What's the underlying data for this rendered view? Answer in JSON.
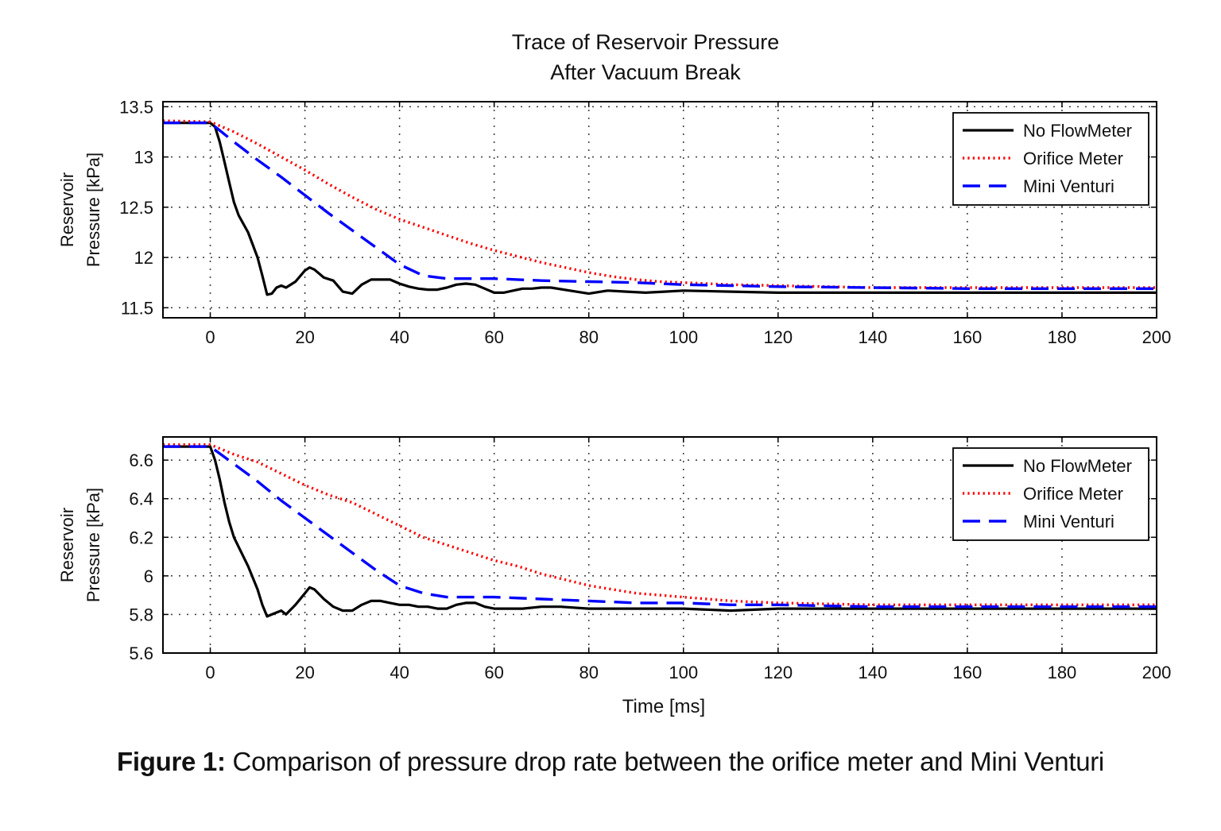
{
  "title_lines": [
    "Trace of Reservoir Pressure",
    "After Vacuum Break"
  ],
  "caption": {
    "label": "Figure 1:",
    "text": " Comparison of pressure drop rate between the orifice meter and Mini Venturi"
  },
  "colors": {
    "no_flow": "#000000",
    "orifice": "#ff0000",
    "venturi": "#0000ff",
    "grid": "#444444"
  },
  "chart_data": [
    {
      "type": "line",
      "title": "Trace of Reservoir Pressure After Vacuum Break",
      "xlabel": "",
      "ylabel_lines": [
        "Reservoir",
        "Pressure [kPa]"
      ],
      "xlim": [
        -10,
        200
      ],
      "ylim": [
        11.4,
        13.55
      ],
      "xticks": [
        0,
        20,
        40,
        60,
        80,
        100,
        120,
        140,
        160,
        180,
        200
      ],
      "yticks": [
        11.5,
        12,
        12.5,
        13,
        13.5
      ],
      "ytick_labels": [
        "11.5",
        "12",
        "12.5",
        "13",
        "13.5"
      ],
      "grid": true,
      "legend": "top-right",
      "series": [
        {
          "name": "No FlowMeter",
          "style": "solid",
          "x": [
            -10,
            0,
            1,
            2,
            3,
            4,
            5,
            6,
            8,
            10,
            11,
            12,
            13,
            14,
            15,
            16,
            18,
            20,
            21,
            22,
            24,
            26,
            28,
            30,
            32,
            34,
            36,
            38,
            40,
            42,
            44,
            46,
            48,
            50,
            52,
            54,
            56,
            58,
            60,
            62,
            64,
            66,
            68,
            70,
            72,
            76,
            80,
            84,
            88,
            92,
            96,
            100,
            110,
            120,
            140,
            160,
            180,
            200
          ],
          "y": [
            13.34,
            13.34,
            13.3,
            13.15,
            12.95,
            12.75,
            12.55,
            12.42,
            12.25,
            12.0,
            11.82,
            11.63,
            11.64,
            11.7,
            11.72,
            11.7,
            11.76,
            11.87,
            11.9,
            11.88,
            11.8,
            11.77,
            11.66,
            11.64,
            11.73,
            11.78,
            11.78,
            11.78,
            11.74,
            11.71,
            11.69,
            11.68,
            11.68,
            11.7,
            11.73,
            11.74,
            11.73,
            11.69,
            11.65,
            11.65,
            11.67,
            11.69,
            11.69,
            11.7,
            11.7,
            11.67,
            11.64,
            11.67,
            11.66,
            11.65,
            11.66,
            11.67,
            11.66,
            11.65,
            11.65,
            11.65,
            11.65,
            11.65
          ]
        },
        {
          "name": "Orifice Meter",
          "style": "dotted",
          "x": [
            -10,
            0,
            5,
            10,
            15,
            20,
            25,
            30,
            35,
            40,
            45,
            50,
            55,
            60,
            65,
            70,
            75,
            80,
            85,
            90,
            95,
            100,
            110,
            120,
            130,
            140,
            160,
            180,
            200
          ],
          "y": [
            13.36,
            13.35,
            13.25,
            13.13,
            13.0,
            12.87,
            12.73,
            12.6,
            12.48,
            12.38,
            12.3,
            12.22,
            12.14,
            12.07,
            12.01,
            11.95,
            11.9,
            11.85,
            11.81,
            11.78,
            11.76,
            11.75,
            11.73,
            11.72,
            11.71,
            11.7,
            11.7,
            11.7,
            11.7
          ]
        },
        {
          "name": "Mini Venturi",
          "style": "dashed",
          "x": [
            -10,
            0,
            5,
            10,
            15,
            20,
            25,
            30,
            35,
            40,
            45,
            50,
            55,
            60,
            70,
            80,
            90,
            100,
            110,
            120,
            140,
            160,
            180,
            200
          ],
          "y": [
            13.34,
            13.34,
            13.15,
            12.97,
            12.8,
            12.62,
            12.44,
            12.27,
            12.1,
            11.93,
            11.82,
            11.79,
            11.79,
            11.79,
            11.77,
            11.76,
            11.75,
            11.73,
            11.72,
            11.71,
            11.7,
            11.69,
            11.69,
            11.69
          ]
        }
      ]
    },
    {
      "type": "line",
      "title": "",
      "xlabel": "Time [ms]",
      "ylabel_lines": [
        "Reservoir",
        "Pressure [kPa]"
      ],
      "xlim": [
        -10,
        200
      ],
      "ylim": [
        5.6,
        6.72
      ],
      "xticks": [
        0,
        20,
        40,
        60,
        80,
        100,
        120,
        140,
        160,
        180,
        200
      ],
      "yticks": [
        5.6,
        5.8,
        6,
        6.2,
        6.4,
        6.6
      ],
      "ytick_labels": [
        "5.6",
        "5.8",
        "6",
        "6.2",
        "6.4",
        "6.6"
      ],
      "grid": true,
      "legend": "top-right",
      "series": [
        {
          "name": "No FlowMeter",
          "style": "solid",
          "x": [
            -10,
            0,
            1,
            2,
            3,
            4,
            5,
            6,
            8,
            10,
            11,
            12,
            13,
            14,
            15,
            16,
            18,
            20,
            21,
            22,
            24,
            26,
            28,
            30,
            32,
            34,
            36,
            38,
            40,
            42,
            44,
            46,
            48,
            50,
            52,
            54,
            56,
            58,
            60,
            62,
            66,
            70,
            74,
            80,
            90,
            100,
            110,
            120,
            140,
            160,
            180,
            200
          ],
          "y": [
            6.67,
            6.67,
            6.6,
            6.5,
            6.38,
            6.28,
            6.2,
            6.15,
            6.05,
            5.93,
            5.85,
            5.79,
            5.8,
            5.81,
            5.82,
            5.8,
            5.85,
            5.91,
            5.94,
            5.93,
            5.88,
            5.84,
            5.82,
            5.82,
            5.85,
            5.87,
            5.87,
            5.86,
            5.85,
            5.85,
            5.84,
            5.84,
            5.83,
            5.83,
            5.85,
            5.86,
            5.86,
            5.84,
            5.83,
            5.83,
            5.83,
            5.84,
            5.84,
            5.83,
            5.83,
            5.83,
            5.82,
            5.83,
            5.83,
            5.83,
            5.83,
            5.83
          ]
        },
        {
          "name": "Orifice Meter",
          "style": "dotted",
          "x": [
            -10,
            0,
            5,
            10,
            15,
            20,
            25,
            30,
            35,
            40,
            45,
            50,
            55,
            60,
            65,
            70,
            75,
            80,
            85,
            90,
            95,
            100,
            110,
            120,
            130,
            140,
            160,
            180,
            200
          ],
          "y": [
            6.68,
            6.68,
            6.63,
            6.59,
            6.53,
            6.47,
            6.42,
            6.38,
            6.32,
            6.26,
            6.2,
            6.16,
            6.12,
            6.08,
            6.05,
            6.01,
            5.98,
            5.95,
            5.93,
            5.91,
            5.9,
            5.89,
            5.87,
            5.86,
            5.855,
            5.85,
            5.85,
            5.85,
            5.85
          ]
        },
        {
          "name": "Mini Venturi",
          "style": "dashed",
          "x": [
            -10,
            0,
            5,
            10,
            15,
            20,
            25,
            30,
            35,
            40,
            45,
            50,
            55,
            60,
            70,
            80,
            90,
            100,
            110,
            120,
            140,
            160,
            180,
            200
          ],
          "y": [
            6.67,
            6.67,
            6.58,
            6.49,
            6.39,
            6.3,
            6.21,
            6.12,
            6.03,
            5.95,
            5.91,
            5.89,
            5.89,
            5.89,
            5.88,
            5.87,
            5.86,
            5.86,
            5.85,
            5.85,
            5.84,
            5.84,
            5.84,
            5.84
          ]
        }
      ]
    }
  ]
}
